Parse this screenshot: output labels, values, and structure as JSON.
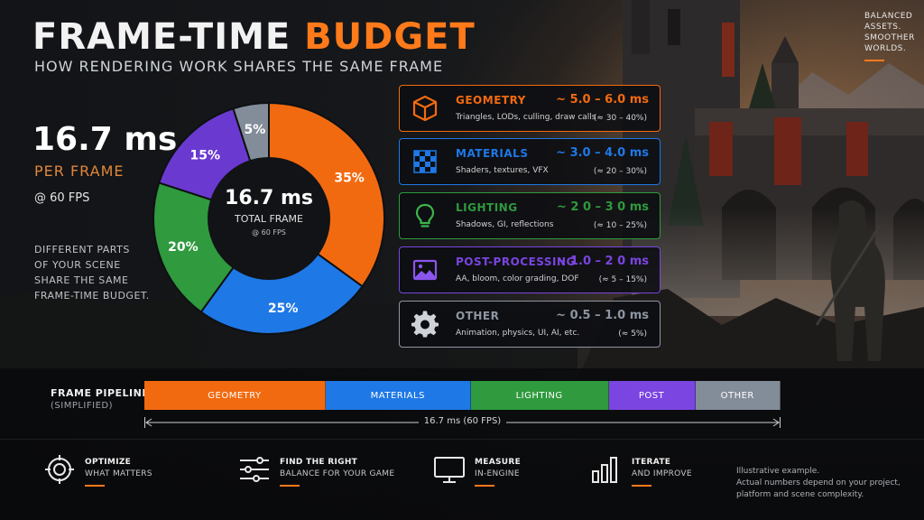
{
  "header": {
    "title_main": "FRAME-TIME",
    "title_accent": "BUDGET",
    "subtitle": "HOW RENDERING WORK SHARES THE SAME FRAME"
  },
  "tagline": [
    "BALANCED",
    "ASSETS.",
    "SMOOTHER",
    "WORLDS."
  ],
  "summary": {
    "ms": "16.7 ms",
    "per_frame": "PER FRAME",
    "fps": "@ 60 FPS",
    "description": [
      "DIFFERENT PARTS",
      "OF YOUR SCENE",
      "SHARE THE SAME",
      "FRAME-TIME BUDGET."
    ]
  },
  "chart_data": {
    "type": "pie",
    "center_value": "16.7 ms",
    "center_label": "TOTAL FRAME",
    "center_sub": "@ 60 FPS",
    "slices": [
      {
        "name": "GEOMETRY",
        "value": 35,
        "label": "35%",
        "color": "#f26a10"
      },
      {
        "name": "MATERIALS",
        "value": 25,
        "label": "25%",
        "color": "#1e78e6"
      },
      {
        "name": "LIGHTING",
        "value": 20,
        "label": "20%",
        "color": "#2f9a3e"
      },
      {
        "name": "POST-PROCESSING",
        "value": 15,
        "label": "15%",
        "color": "#6a3ad0"
      },
      {
        "name": "OTHER",
        "value": 5,
        "label": "5%",
        "color": "#838c99"
      }
    ]
  },
  "categories": [
    {
      "name": "GEOMETRY",
      "desc": "Triangles, LODs, culling, draw calls",
      "range": "~ 5.0 – 6.0 ms",
      "pct": "(≈ 30 – 40%)",
      "color": "#f26a10",
      "icon": "cube-icon"
    },
    {
      "name": "MATERIALS",
      "desc": "Shaders, textures, VFX",
      "range": "~ 3.0 – 4.0 ms",
      "pct": "(≈ 20 – 30%)",
      "color": "#1e78e6",
      "icon": "checker-icon"
    },
    {
      "name": "LIGHTING",
      "desc": "Shadows, GI, reflections",
      "range": "~ 2 0 – 3 0 ms",
      "pct": "(≈ 10 – 25%)",
      "color": "#2f9a3e",
      "icon": "bulb-icon"
    },
    {
      "name": "POST-PROCESSING",
      "desc": "AA, bloom, color grading, DOF",
      "range": "~ 1.0 – 2 0 ms",
      "pct": "(≈ 5 – 15%)",
      "color": "#7a45e0",
      "icon": "image-icon"
    },
    {
      "name": "OTHER",
      "desc": "Animation, physics, UI, AI, etc.",
      "range": "~ 0.5 – 1.0 ms",
      "pct": "(≈ 5%)",
      "color": "#8e96a2",
      "icon": "gear-icon"
    }
  ],
  "pipeline": {
    "label": "FRAME PIPELINE",
    "sub": "(SIMPLIFIED)",
    "segments": [
      {
        "name": "GEOMETRY",
        "share": 0.285,
        "color": "#f26a10"
      },
      {
        "name": "MATERIALS",
        "share": 0.228,
        "color": "#1e78e6"
      },
      {
        "name": "LIGHTING",
        "share": 0.217,
        "color": "#2f9a3e"
      },
      {
        "name": "POST",
        "share": 0.136,
        "color": "#7a45e0"
      },
      {
        "name": "OTHER",
        "share": 0.134,
        "color": "#838c99"
      }
    ],
    "total": "16.7 ms (60 FPS)"
  },
  "tips": [
    {
      "t1": "OPTIMIZE",
      "t2": "WHAT MATTERS",
      "icon": "target-icon"
    },
    {
      "t1": "FIND THE RIGHT",
      "t2": "BALANCE FOR YOUR GAME",
      "icon": "sliders-icon"
    },
    {
      "t1": "MEASURE",
      "t2": "IN-ENGINE",
      "icon": "monitor-icon"
    },
    {
      "t1": "ITERATE",
      "t2": "AND IMPROVE",
      "icon": "bars-icon"
    }
  ],
  "note": [
    "Illustrative example.",
    "Actual numbers depend on your project,",
    "platform and scene complexity."
  ]
}
